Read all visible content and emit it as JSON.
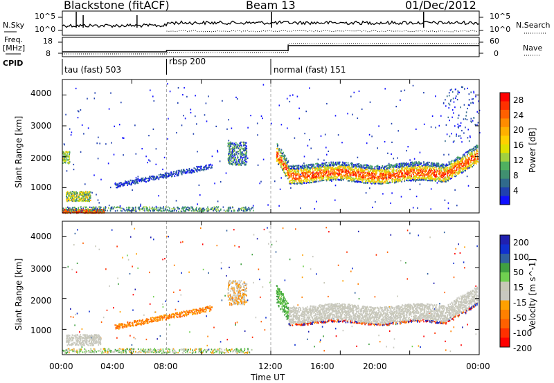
{
  "header": {
    "title": "Blackstone (fitACF)",
    "beam": "Beam 13",
    "date": "01/Dec/2012"
  },
  "top_panels": {
    "nsky_label": "N.Sky",
    "nsearch_label": "N.Search",
    "freq_label_1": "Freq.",
    "freq_label_2": "[MHz]",
    "nave_label": "Nave",
    "cpid_label": "CPID",
    "noise_ticks": [
      "10^5",
      "10^0"
    ],
    "freq_ticks": [
      "18",
      "8"
    ],
    "nave_ticks": [
      "60",
      "0"
    ],
    "cpid_segments": [
      "tau (fast) 503",
      "rbsp 200",
      "normal (fast) 151"
    ]
  },
  "colorbars": {
    "power": {
      "label": "Power [dB]",
      "ticks": [
        "28",
        "24",
        "20",
        "16",
        "12",
        "8",
        "4"
      ],
      "colors": [
        "#ff0000",
        "#ff3000",
        "#ff6000",
        "#ff8c00",
        "#ffb000",
        "#ffd000",
        "#e0e000",
        "#a0d040",
        "#50b060",
        "#409070",
        "#306a8c",
        "#2040b0",
        "#1010ff"
      ]
    },
    "velocity": {
      "label": "Velocity [m s^-1]",
      "ticks": [
        "200",
        "100",
        "50",
        "15",
        "-15",
        "-50",
        "-100",
        "-200"
      ],
      "colors": [
        "#2020b0",
        "#1030d0",
        "#3060a0",
        "#40a040",
        "#70d050",
        "#c8c8b8",
        "#c8c8c0",
        "#ffa000",
        "#ff8000",
        "#ff6000",
        "#ff3000",
        "#ff0000"
      ]
    }
  },
  "axes": {
    "ylabel": "Slant Range [km]",
    "yticks": [
      "1000",
      "2000",
      "3000",
      "4000"
    ],
    "xticks": [
      "00:00",
      "04:00",
      "08:00",
      "12:00",
      "16:00",
      "20:00",
      "00:00"
    ],
    "xlabel": "Time UT"
  },
  "chart_data": {
    "type": "heatmap",
    "title": "Blackstone (fitACF)",
    "xlabel": "Time UT",
    "ylabel": "Slant Range [km]",
    "xlim_hours": [
      0,
      24
    ],
    "ylim_km": [
      180,
      4500
    ],
    "mode_changes_ut_hours": [
      6.0,
      12.0
    ],
    "power_echo_bands": [
      {
        "t0": 0.0,
        "t1": 0.4,
        "r0": 1800,
        "r1": 2200
      },
      {
        "t0": 0.2,
        "t1": 1.6,
        "r0": 580,
        "r1": 900
      },
      {
        "t0": 0.0,
        "t1": 2.4,
        "r0": 200,
        "r1": 450
      },
      {
        "t0": 3.0,
        "t1": 8.5,
        "r0": 1000,
        "r1": 1700
      },
      {
        "t0": 9.5,
        "t1": 10.6,
        "r0": 1750,
        "r1": 2500
      },
      {
        "t0": 12.3,
        "t1": 23.9,
        "r0": 1100,
        "r1": 2300
      }
    ],
    "velocity_echo_bands": [
      {
        "t0": 0.2,
        "t1": 2.2,
        "r0": 500,
        "r1": 850
      },
      {
        "t0": 3.0,
        "t1": 8.5,
        "r0": 1000,
        "r1": 1800
      },
      {
        "t0": 9.5,
        "t1": 10.6,
        "r0": 1800,
        "r1": 2600
      },
      {
        "t0": 12.3,
        "t1": 23.9,
        "r0": 1100,
        "r1": 2300
      }
    ]
  }
}
